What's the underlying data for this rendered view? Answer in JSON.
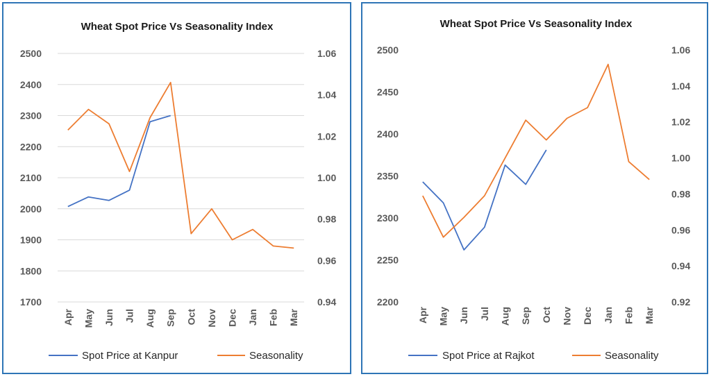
{
  "colors": {
    "spot": "#4472c4",
    "seasonality": "#ed7d31",
    "border": "#2e75b6",
    "grid": "#d9d9d9"
  },
  "chart_data": [
    {
      "type": "line",
      "title": "Wheat Spot Price Vs Seasonality Index",
      "categories": [
        "Apr",
        "May",
        "Jun",
        "Jul",
        "Aug",
        "Sep",
        "Oct",
        "Nov",
        "Dec",
        "Jan",
        "Feb",
        "Mar"
      ],
      "y_left": {
        "ticks": [
          "2500",
          "2400",
          "2300",
          "2200",
          "2100",
          "2000",
          "1900",
          "1800",
          "1700"
        ],
        "range": [
          1700,
          2500
        ]
      },
      "y_right": {
        "ticks": [
          "1.06",
          "1.04",
          "1.02",
          "1.00",
          "0.98",
          "0.96",
          "0.94"
        ],
        "range": [
          0.94,
          1.06
        ]
      },
      "grid": true,
      "legend_position": "bottom",
      "series": [
        {
          "name": "Spot Price at Kanpur",
          "axis": "left",
          "color": "#4472c4",
          "values": [
            2007,
            2038,
            2027,
            2060,
            2280,
            2300,
            null,
            null,
            null,
            null,
            null,
            null
          ]
        },
        {
          "name": "Seasonality",
          "axis": "right",
          "color": "#ed7d31",
          "values": [
            1.023,
            1.033,
            1.026,
            1.003,
            1.029,
            1.046,
            0.973,
            0.985,
            0.97,
            0.975,
            0.967,
            0.966
          ]
        }
      ]
    },
    {
      "type": "line",
      "title": "Wheat Spot Price Vs Seasonality Index",
      "categories": [
        "Apr",
        "May",
        "Jun",
        "Jul",
        "Aug",
        "Sep",
        "Oct",
        "Nov",
        "Dec",
        "Jan",
        "Feb",
        "Mar"
      ],
      "y_left": {
        "ticks": [
          "2500",
          "2450",
          "2400",
          "2350",
          "2300",
          "2250",
          "2200"
        ],
        "range": [
          2200,
          2500
        ]
      },
      "y_right": {
        "ticks": [
          "1.06",
          "1.04",
          "1.02",
          "1.00",
          "0.98",
          "0.96",
          "0.94",
          "0.92"
        ],
        "range": [
          0.92,
          1.06
        ]
      },
      "grid": false,
      "legend_position": "bottom",
      "series": [
        {
          "name": "Spot Price at Rajkot",
          "axis": "left",
          "color": "#4472c4",
          "values": [
            2343,
            2318,
            2262,
            2289,
            2363,
            2340,
            2381,
            null,
            null,
            null,
            null,
            null
          ]
        },
        {
          "name": "Seasonality",
          "axis": "right",
          "color": "#ed7d31",
          "values": [
            0.979,
            0.956,
            0.967,
            0.979,
            1.0,
            1.021,
            1.01,
            1.022,
            1.028,
            1.052,
            0.998,
            0.988
          ]
        }
      ]
    }
  ]
}
